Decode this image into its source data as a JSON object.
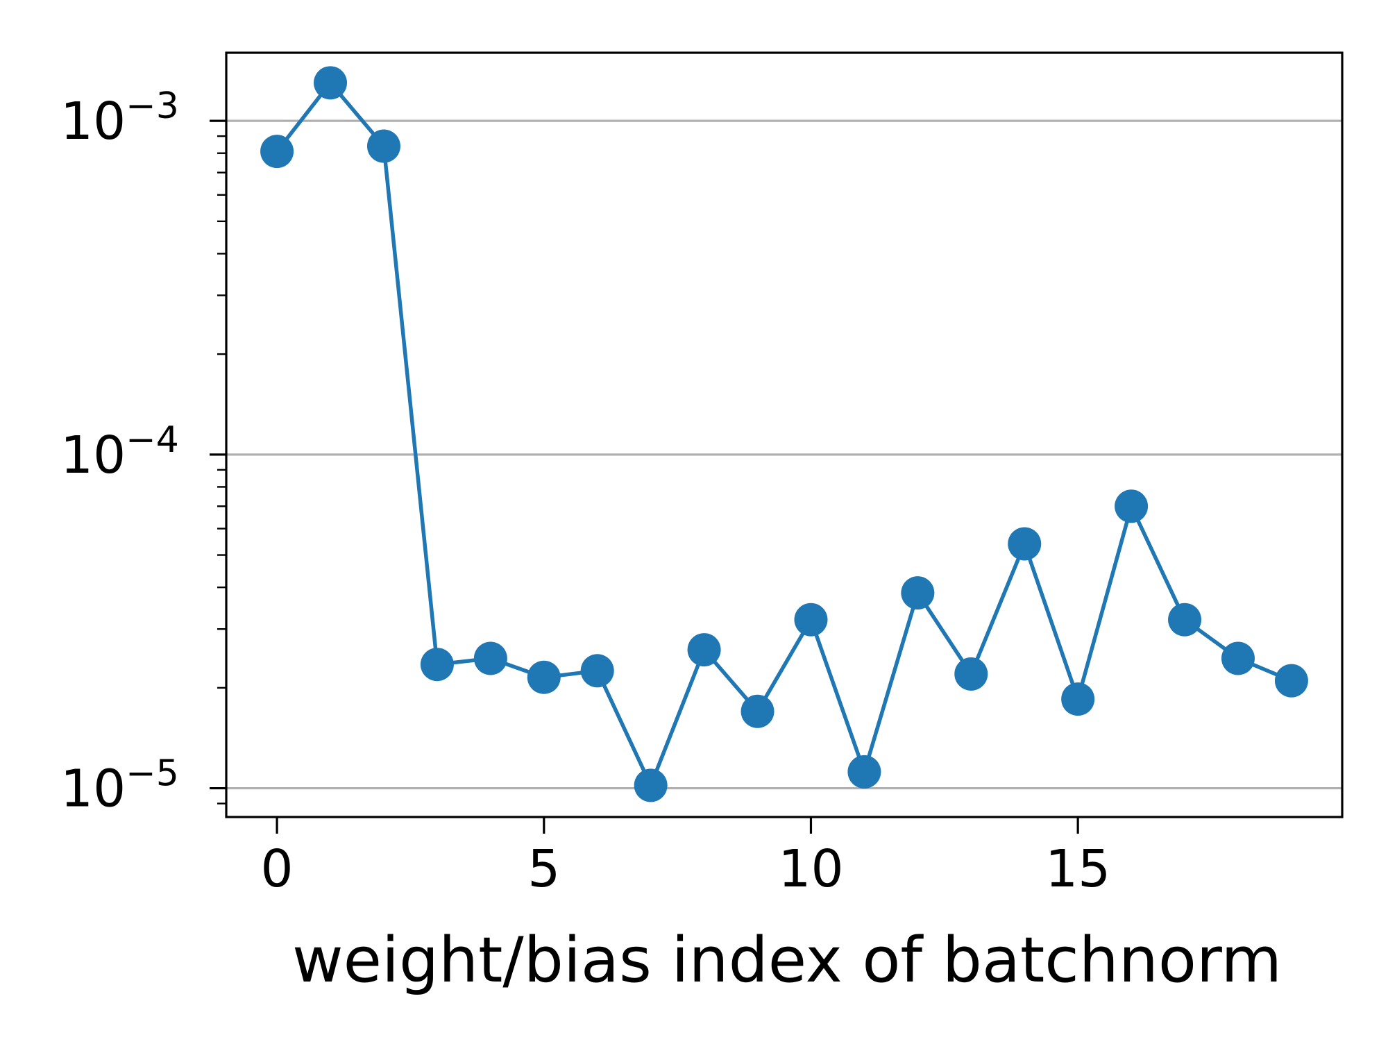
{
  "chart_data": {
    "type": "line",
    "title": "",
    "xlabel": "weight/bias index of batchnorm",
    "ylabel": "",
    "yscale": "log",
    "x": [
      0,
      1,
      2,
      3,
      4,
      5,
      6,
      7,
      8,
      9,
      10,
      11,
      12,
      13,
      14,
      15,
      16,
      17,
      18,
      19
    ],
    "series": [
      {
        "values": [
          0.00081,
          0.0013,
          0.00084,
          2.35e-05,
          2.45e-05,
          2.15e-05,
          2.25e-05,
          1.02e-05,
          2.6e-05,
          1.7e-05,
          3.2e-05,
          1.12e-05,
          3.85e-05,
          2.2e-05,
          5.4e-05,
          1.85e-05,
          7e-05,
          3.2e-05,
          2.45e-05,
          2.1e-05
        ],
        "color": "#1f77b4",
        "marker": "circle"
      }
    ],
    "xlim": [
      -0.95,
      19.95
    ],
    "ylim": [
      8.2e-06,
      0.0016
    ],
    "x_ticks": [
      0,
      5,
      10,
      15
    ],
    "x_tick_labels": [
      "0",
      "5",
      "10",
      "15"
    ],
    "y_ticks": [
      1e-05,
      0.0001,
      0.001
    ],
    "y_tick_labels": [
      {
        "base": "10",
        "exp": "−5"
      },
      {
        "base": "10",
        "exp": "−4"
      },
      {
        "base": "10",
        "exp": "−3"
      }
    ],
    "grid": "horizontal-major",
    "legend": "none",
    "colors": {
      "line": "#1f77b4",
      "grid": "#b0b0b0",
      "axes": "#000000"
    }
  }
}
